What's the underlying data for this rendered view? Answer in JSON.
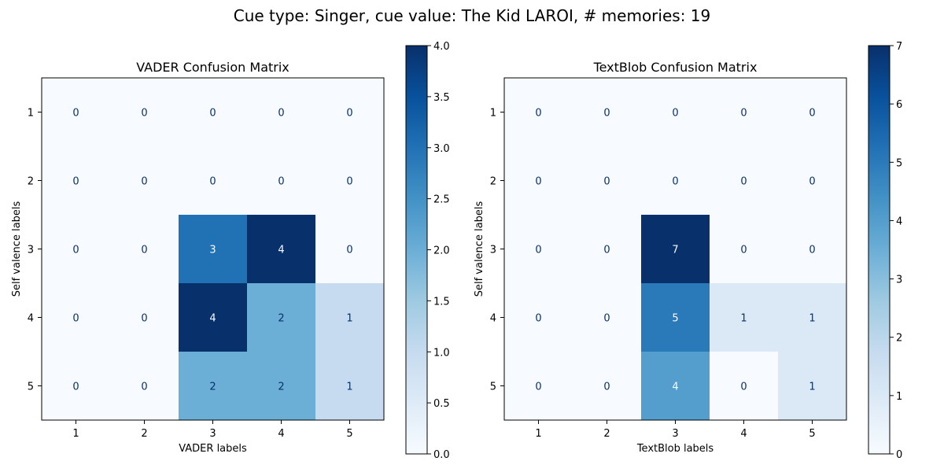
{
  "figure": {
    "suptitle": "Cue type: Singer, cue value: The Kid LAROI, # memories: 19"
  },
  "chart_data": [
    {
      "type": "heatmap",
      "title": "VADER Confusion Matrix",
      "xlabel": "VADER labels",
      "ylabel": "Self valence labels",
      "x_categories": [
        "1",
        "2",
        "3",
        "4",
        "5"
      ],
      "y_categories": [
        "1",
        "2",
        "3",
        "4",
        "5"
      ],
      "values": [
        [
          0,
          0,
          0,
          0,
          0
        ],
        [
          0,
          0,
          0,
          0,
          0
        ],
        [
          0,
          0,
          3,
          4,
          0
        ],
        [
          0,
          0,
          4,
          2,
          1
        ],
        [
          0,
          0,
          2,
          2,
          1
        ]
      ],
      "colormap": "Blues",
      "colorbar": {
        "min": 0,
        "max": 4,
        "ticks": [
          "0.0",
          "0.5",
          "1.0",
          "1.5",
          "2.0",
          "2.5",
          "3.0",
          "3.5",
          "4.0"
        ]
      }
    },
    {
      "type": "heatmap",
      "title": "TextBlob Confusion Matrix",
      "xlabel": "TextBlob labels",
      "ylabel": "Self valence labels",
      "x_categories": [
        "1",
        "2",
        "3",
        "4",
        "5"
      ],
      "y_categories": [
        "1",
        "2",
        "3",
        "4",
        "5"
      ],
      "values": [
        [
          0,
          0,
          0,
          0,
          0
        ],
        [
          0,
          0,
          0,
          0,
          0
        ],
        [
          0,
          0,
          7,
          0,
          0
        ],
        [
          0,
          0,
          5,
          1,
          1
        ],
        [
          0,
          0,
          4,
          0,
          1
        ]
      ],
      "colormap": "Blues",
      "colorbar": {
        "min": 0,
        "max": 7,
        "ticks": [
          "0",
          "1",
          "2",
          "3",
          "4",
          "5",
          "6",
          "7"
        ]
      }
    }
  ]
}
